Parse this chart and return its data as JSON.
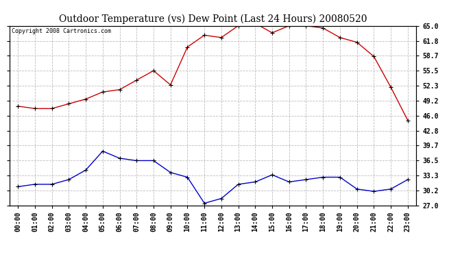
{
  "title": "Outdoor Temperature (vs) Dew Point (Last 24 Hours) 20080520",
  "copyright_text": "Copyright 2008 Cartronics.com",
  "x_labels": [
    "00:00",
    "01:00",
    "02:00",
    "03:00",
    "04:00",
    "05:00",
    "06:00",
    "07:00",
    "08:00",
    "09:00",
    "10:00",
    "11:00",
    "12:00",
    "13:00",
    "14:00",
    "15:00",
    "16:00",
    "17:00",
    "18:00",
    "19:00",
    "20:00",
    "21:00",
    "22:00",
    "23:00"
  ],
  "temp_data": [
    48.0,
    47.5,
    47.5,
    48.5,
    49.5,
    51.0,
    51.5,
    53.5,
    55.5,
    52.5,
    60.5,
    63.0,
    62.5,
    65.0,
    65.5,
    63.5,
    65.0,
    65.0,
    64.5,
    62.5,
    61.5,
    58.5,
    52.0,
    45.0
  ],
  "dew_data": [
    31.0,
    31.5,
    31.5,
    32.5,
    34.5,
    38.5,
    37.0,
    36.5,
    36.5,
    34.0,
    33.0,
    27.5,
    28.5,
    31.5,
    32.0,
    33.5,
    32.0,
    32.5,
    33.0,
    33.0,
    30.5,
    30.0,
    30.5,
    32.5
  ],
  "temp_color": "#cc0000",
  "dew_color": "#0000cc",
  "background_color": "#ffffff",
  "grid_color": "#bbbbbb",
  "ylim": [
    27.0,
    65.0
  ],
  "yticks": [
    27.0,
    30.2,
    33.3,
    36.5,
    39.7,
    42.8,
    46.0,
    49.2,
    52.3,
    55.5,
    58.7,
    61.8,
    65.0
  ],
  "ytick_labels": [
    "27.0",
    "30.2",
    "33.3",
    "36.5",
    "39.7",
    "42.8",
    "46.0",
    "49.2",
    "52.3",
    "55.5",
    "58.7",
    "61.8",
    "65.0"
  ],
  "figsize": [
    6.9,
    3.75
  ],
  "dpi": 100,
  "title_fontsize": 10,
  "tick_fontsize": 7,
  "copyright_fontsize": 6
}
